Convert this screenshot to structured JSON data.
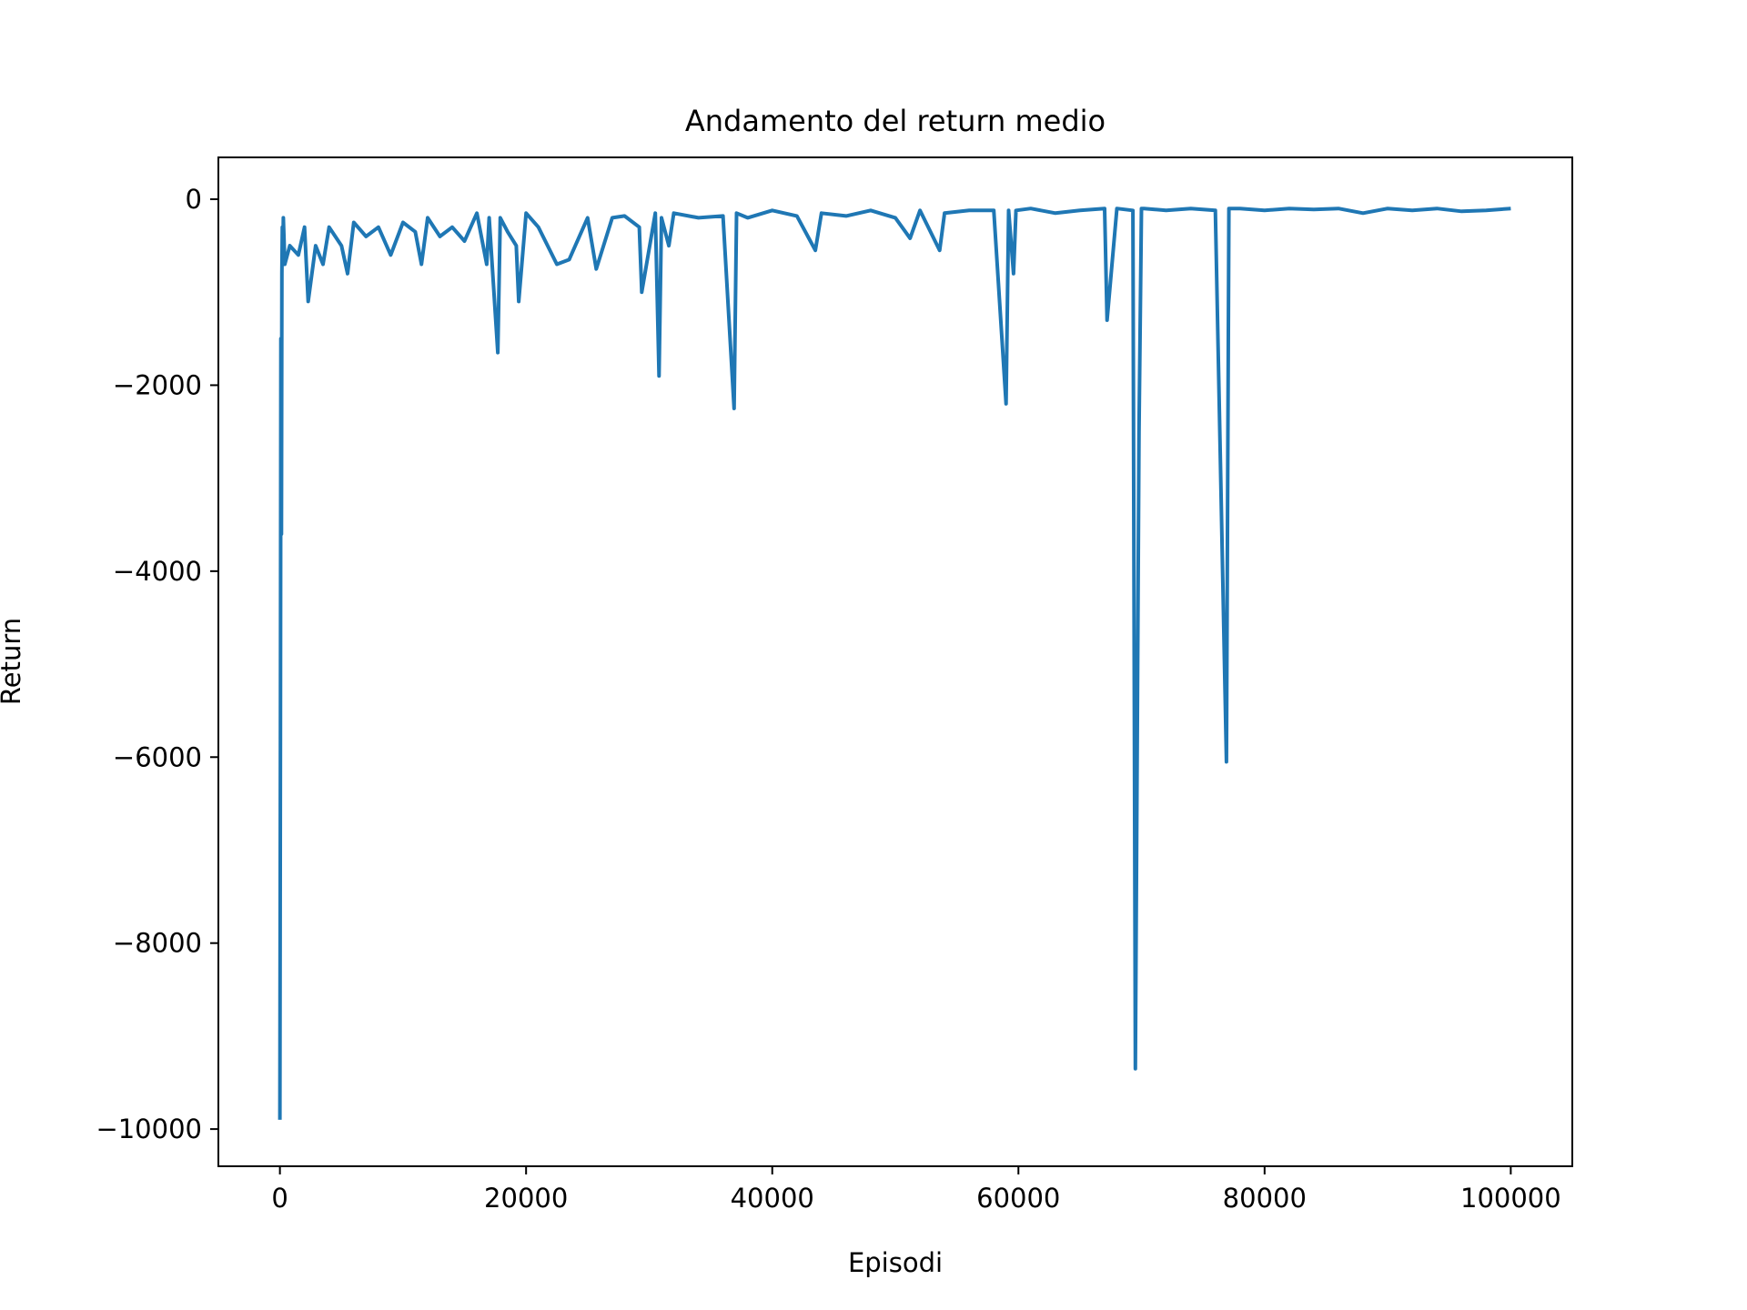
{
  "chart_data": {
    "type": "line",
    "title": "Andamento del return medio",
    "xlabel": "Episodi",
    "ylabel": "Return",
    "xlim": [
      -5000,
      105000
    ],
    "ylim": [
      -10400,
      450
    ],
    "xticks": [
      0,
      20000,
      40000,
      60000,
      80000,
      100000
    ],
    "xtick_labels": [
      "0",
      "20000",
      "40000",
      "60000",
      "80000",
      "100000"
    ],
    "yticks": [
      0,
      -2000,
      -4000,
      -6000,
      -8000,
      -10000
    ],
    "ytick_labels": [
      "0",
      "−2000",
      "−4000",
      "−6000",
      "−8000",
      "−10000"
    ],
    "grid": false,
    "legend": "none",
    "series": [
      {
        "color": "#1f77b4",
        "x": [
          0,
          40,
          80,
          120,
          160,
          200,
          240,
          280,
          400,
          800,
          1500,
          2000,
          2300,
          2900,
          3500,
          4000,
          5000,
          5500,
          6000,
          7000,
          8000,
          9000,
          10000,
          11000,
          11500,
          12000,
          13000,
          14000,
          15000,
          16000,
          16800,
          17000,
          17700,
          17900,
          18500,
          19200,
          19400,
          20000,
          21000,
          22500,
          23500,
          25000,
          25700,
          27000,
          28000,
          29200,
          29400,
          30500,
          30800,
          31000,
          31600,
          32000,
          34000,
          36000,
          36900,
          37100,
          38000,
          40000,
          42000,
          43500,
          44000,
          46000,
          48000,
          50000,
          51200,
          52000,
          53600,
          54000,
          56000,
          58000,
          59000,
          59200,
          59600,
          59800,
          61000,
          63000,
          65000,
          67000,
          67200,
          68000,
          69300,
          69500,
          69800,
          70000,
          70200,
          72000,
          74000,
          76000,
          76900,
          77100,
          78000,
          80000,
          82000,
          84000,
          86000,
          88000,
          90000,
          92000,
          94000,
          96000,
          98000,
          100000
        ],
        "y": [
          -9900,
          -5800,
          -1500,
          -3600,
          -800,
          -300,
          -600,
          -200,
          -700,
          -500,
          -600,
          -300,
          -1100,
          -500,
          -700,
          -300,
          -500,
          -800,
          -250,
          -400,
          -300,
          -600,
          -250,
          -350,
          -700,
          -200,
          -400,
          -300,
          -450,
          -150,
          -700,
          -200,
          -1650,
          -200,
          -350,
          -500,
          -1100,
          -150,
          -300,
          -700,
          -650,
          -200,
          -750,
          -200,
          -180,
          -300,
          -1000,
          -150,
          -1900,
          -200,
          -500,
          -150,
          -200,
          -180,
          -2250,
          -150,
          -200,
          -120,
          -180,
          -550,
          -150,
          -180,
          -120,
          -200,
          -420,
          -120,
          -550,
          -150,
          -120,
          -120,
          -2200,
          -120,
          -800,
          -120,
          -100,
          -150,
          -120,
          -100,
          -1300,
          -100,
          -120,
          -9350,
          -2500,
          -100,
          -100,
          -120,
          -100,
          -120,
          -6050,
          -100,
          -100,
          -120,
          -100,
          -110,
          -100,
          -150,
          -100,
          -120,
          -100,
          -130,
          -120,
          -100
        ]
      }
    ]
  }
}
